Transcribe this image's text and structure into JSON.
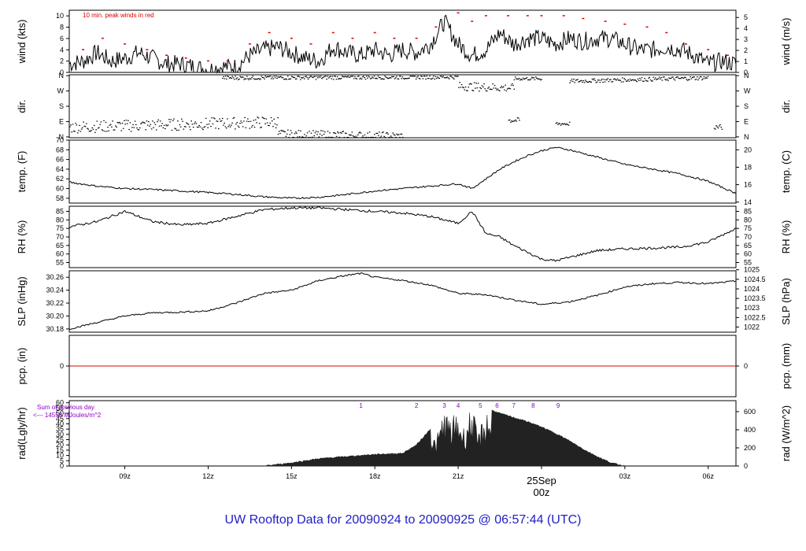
{
  "footer": {
    "title": "UW Rooftop Data for 20090924  to  20090925 @ 06:57:44  (UTC)"
  },
  "colors": {
    "axis": "#000000",
    "red": "#dd0000",
    "purple": "#8a00c8",
    "blue": "#2020c8",
    "fill": "#222222"
  },
  "chart_data": [
    {
      "type": "line",
      "panel": "wind",
      "ylabel_left": "wind (kts)",
      "ylabel_right": "wind (m/s)",
      "annotation": "10 min. peak winds in red",
      "ylim": [
        0,
        11
      ],
      "yticks_left": [
        0,
        2,
        4,
        6,
        8,
        10
      ],
      "yticks_right": [
        {
          "label": "0",
          "v": 0
        },
        {
          "label": "1",
          "v": 1.94
        },
        {
          "label": "2",
          "v": 3.89
        },
        {
          "label": "3",
          "v": 5.83
        },
        {
          "label": "4",
          "v": 7.78
        },
        {
          "label": "5",
          "v": 9.72
        }
      ],
      "xrange_hours": [
        -17,
        7
      ],
      "series": [
        {
          "name": "wind",
          "x": [
            -17,
            -16.5,
            -16,
            -15.5,
            -15,
            -14.5,
            -14,
            -13.5,
            -13,
            -12.5,
            -12,
            -11.5,
            -11,
            -10.5,
            -10,
            -9.5,
            -9,
            -8.5,
            -8,
            -7.5,
            -7,
            -6.5,
            -6,
            -5.5,
            -5,
            -4.5,
            -4,
            -3.5,
            -3,
            -2.5,
            -2,
            -1.5,
            -1,
            -0.5,
            0,
            0.5,
            1,
            1.5,
            2,
            2.5,
            3,
            3.5,
            4,
            4.5,
            5,
            5.5,
            6,
            6.5,
            7
          ],
          "y": [
            1.5,
            2,
            3.5,
            2,
            2.5,
            3.5,
            2.5,
            1.5,
            1.5,
            1,
            0.5,
            1,
            1,
            3,
            4,
            4.5,
            3.5,
            2.5,
            2,
            4.5,
            3.5,
            3,
            4,
            3,
            4,
            3.5,
            5,
            9,
            5,
            3,
            4,
            7,
            5,
            6,
            6,
            5,
            6,
            5.5,
            6,
            6,
            5,
            4,
            4,
            4.5,
            4,
            3,
            1.5,
            2,
            1.5
          ]
        },
        {
          "name": "10 min. peak",
          "x": [
            -16.5,
            -15.8,
            -15,
            -14.2,
            -13.5,
            -12.8,
            -12,
            -11.3,
            -10.5,
            -9.8,
            -9,
            -8.3,
            -7.5,
            -6.8,
            -6,
            -5.3,
            -4.5,
            -3.8,
            -3,
            -2.5,
            -2,
            -1.2,
            -0.5,
            0,
            0.8,
            1.5,
            2.3,
            3,
            3.8,
            4.5,
            5.2,
            6,
            6.7
          ],
          "y": [
            4,
            6,
            5,
            4,
            3,
            2.5,
            2,
            2,
            5,
            7,
            6,
            5,
            7,
            6,
            7,
            6,
            6,
            8,
            10.5,
            9,
            10,
            10,
            10,
            10,
            10,
            9.5,
            9,
            8.5,
            8,
            7,
            5,
            4,
            3
          ]
        }
      ]
    },
    {
      "type": "scatter",
      "panel": "direction",
      "ylabel_left": "dir.",
      "ylabel_right": "dir.",
      "yticks": [
        "N",
        "E",
        "S",
        "W",
        "N"
      ],
      "ylim": [
        0,
        360
      ],
      "xrange_hours": [
        -17,
        7
      ],
      "segments": [
        {
          "x": [
            -17,
            -9.5
          ],
          "center": [
            60,
            90
          ],
          "spread": 35
        },
        {
          "x": [
            -9.5,
            -5
          ],
          "center": [
            20,
            5
          ],
          "spread": 25
        },
        {
          "x": [
            -11.5,
            -3
          ],
          "center": [
            350,
            355
          ],
          "spread": 12
        },
        {
          "x": [
            -3,
            -1
          ],
          "center": [
            300,
            290
          ],
          "spread": 25
        },
        {
          "x": [
            -1,
            0
          ],
          "center": [
            345,
            345
          ],
          "spread": 10
        },
        {
          "x": [
            -1.2,
            -0.8
          ],
          "center": [
            100,
            100
          ],
          "spread": 15
        },
        {
          "x": [
            0.5,
            1
          ],
          "center": [
            80,
            80
          ],
          "spread": 12
        },
        {
          "x": [
            1,
            6
          ],
          "center": [
            330,
            350
          ],
          "spread": 12
        },
        {
          "x": [
            6.2,
            6.5
          ],
          "center": [
            60,
            60
          ],
          "spread": 15
        }
      ]
    },
    {
      "type": "line",
      "panel": "temperature",
      "ylabel_left": "temp. (F)",
      "ylabel_right": "temp. (C)",
      "ylim": [
        57,
        70
      ],
      "yticks_left": [
        58,
        60,
        62,
        64,
        66,
        68,
        70
      ],
      "yticks_right": [
        {
          "label": "14",
          "v": 57.2
        },
        {
          "label": "16",
          "v": 60.8
        },
        {
          "label": "18",
          "v": 64.4
        },
        {
          "label": "20",
          "v": 68
        }
      ],
      "xrange_hours": [
        -17,
        7
      ],
      "series": [
        {
          "name": "temp",
          "x": [
            -17,
            -16,
            -15,
            -14,
            -13,
            -12,
            -11,
            -10,
            -9,
            -8,
            -7,
            -6,
            -5,
            -4,
            -3,
            -2.5,
            -2,
            -1.5,
            -1,
            -0.5,
            0,
            0.5,
            1,
            2,
            3,
            4,
            5,
            6,
            7
          ],
          "y": [
            61.3,
            60.5,
            60,
            59.8,
            59.5,
            59.2,
            58.8,
            58.3,
            58,
            58.2,
            58.8,
            59.5,
            60,
            60.5,
            61,
            60,
            62,
            64,
            65.5,
            66.8,
            67.8,
            68.5,
            68,
            66.5,
            65,
            64,
            63,
            61.5,
            59
          ]
        }
      ]
    },
    {
      "type": "line",
      "panel": "humidity",
      "ylabel_left": "RH (%)",
      "ylabel_right": "RH (%)",
      "ylim": [
        52,
        88
      ],
      "yticks": [
        55,
        60,
        65,
        70,
        75,
        80,
        85
      ],
      "xrange_hours": [
        -17,
        7
      ],
      "series": [
        {
          "name": "RH",
          "x": [
            -17,
            -16,
            -15,
            -14,
            -13,
            -12,
            -11,
            -10,
            -9,
            -8,
            -7,
            -6,
            -5,
            -4,
            -3,
            -2.5,
            -2,
            -1.5,
            -1,
            -0.5,
            0,
            0.5,
            1,
            2,
            3,
            4,
            5,
            6,
            7
          ],
          "y": [
            76,
            79,
            85,
            79,
            77,
            78,
            82,
            86,
            87,
            87,
            86,
            85,
            84,
            82,
            78,
            85,
            72,
            70,
            65,
            61,
            57,
            56,
            58,
            62,
            63,
            63.5,
            64,
            67,
            75
          ]
        }
      ]
    },
    {
      "type": "line",
      "panel": "pressure",
      "ylabel_left": "SLP (inHg)",
      "ylabel_right": "SLP (hPa)",
      "ylim": [
        30.175,
        30.27
      ],
      "yticks_left": [
        "30.18",
        "30.20",
        "30.22",
        "30.24",
        "30.26"
      ],
      "yticks_right": [
        {
          "label": "1022",
          "v": 30.183
        },
        {
          "label": "1022.5",
          "v": 30.1977
        },
        {
          "label": "1023",
          "v": 30.2125
        },
        {
          "label": "1023.5",
          "v": 30.2272
        },
        {
          "label": "1024",
          "v": 30.242
        },
        {
          "label": "1024.5",
          "v": 30.2568
        },
        {
          "label": "1025",
          "v": 30.2716
        }
      ],
      "xrange_hours": [
        -17,
        7
      ],
      "series": [
        {
          "name": "SLP",
          "x": [
            -17,
            -16,
            -15,
            -14,
            -13,
            -12,
            -11,
            -10,
            -9,
            -8,
            -7,
            -6.5,
            -6,
            -5,
            -4,
            -3,
            -2,
            -1,
            0,
            1,
            2,
            3,
            4,
            5,
            6,
            7
          ],
          "y": [
            30.18,
            30.19,
            30.2,
            30.205,
            30.206,
            30.208,
            30.22,
            30.235,
            30.24,
            30.255,
            30.263,
            30.266,
            30.26,
            30.255,
            30.248,
            30.235,
            30.233,
            30.225,
            30.218,
            30.222,
            30.232,
            30.245,
            30.25,
            30.252,
            30.25,
            30.254
          ]
        }
      ]
    },
    {
      "type": "line",
      "panel": "precipitation",
      "ylabel_left": "pcp. (in)",
      "ylabel_right": "pcp. (mm)",
      "ytick_left": "0",
      "ytick_right": "0",
      "xrange_hours": [
        -17,
        7
      ],
      "series": [
        {
          "name": "pcp",
          "x": [
            -17,
            7
          ],
          "y": [
            0,
            0
          ]
        }
      ]
    },
    {
      "type": "area",
      "panel": "radiation",
      "ylabel_left": "rad(Lgly/hr)",
      "ylabel_right": "rad (W/m^2)",
      "ylim": [
        0,
        62
      ],
      "yticks_left": [
        0,
        5,
        10,
        15,
        20,
        25,
        30,
        35,
        40,
        45,
        50,
        55,
        60
      ],
      "yticks_right": [
        {
          "label": "0",
          "v": 0
        },
        {
          "label": "200",
          "v": 17.2
        },
        {
          "label": "400",
          "v": 34.4
        },
        {
          "label": "600",
          "v": 51.6
        }
      ],
      "annotation_line1": "Sum of previous day",
      "annotation_line2": "<--- 14558 MJoules/m^2",
      "markers": [
        "1",
        "2",
        "3",
        "4",
        "5",
        "6",
        "7",
        "8",
        "9"
      ],
      "marker_x": [
        -6.5,
        -4.5,
        -3.5,
        -3,
        -2.2,
        -1.6,
        -1,
        -0.3,
        0.6
      ],
      "xrange_hours": [
        -17,
        7
      ],
      "series": [
        {
          "name": "rad",
          "x": [
            -10,
            -9,
            -8,
            -7,
            -6,
            -5,
            -4.5,
            -4,
            -3.8,
            -3.5,
            -3.3,
            -3,
            -2.8,
            -2.5,
            -2.3,
            -2,
            -1.5,
            -1,
            -0.5,
            0,
            0.5,
            1,
            1.5,
            2,
            2.5,
            3
          ],
          "y": [
            0,
            3,
            7,
            9,
            11,
            12,
            20,
            35,
            25,
            57,
            45,
            52,
            38,
            60,
            30,
            55,
            50,
            46,
            42,
            37,
            31,
            24,
            16,
            9,
            3,
            0
          ]
        }
      ]
    }
  ],
  "x_axis": {
    "ticks": [
      {
        "label": "09z",
        "h": -15
      },
      {
        "label": "12z",
        "h": -12
      },
      {
        "label": "15z",
        "h": -9
      },
      {
        "label": "18z",
        "h": -6
      },
      {
        "label": "21z",
        "h": -3
      },
      {
        "label": "03z",
        "h": 3
      },
      {
        "label": "06z",
        "h": 6
      }
    ],
    "date_label": "25Sep",
    "date_hour_label": "00z"
  }
}
